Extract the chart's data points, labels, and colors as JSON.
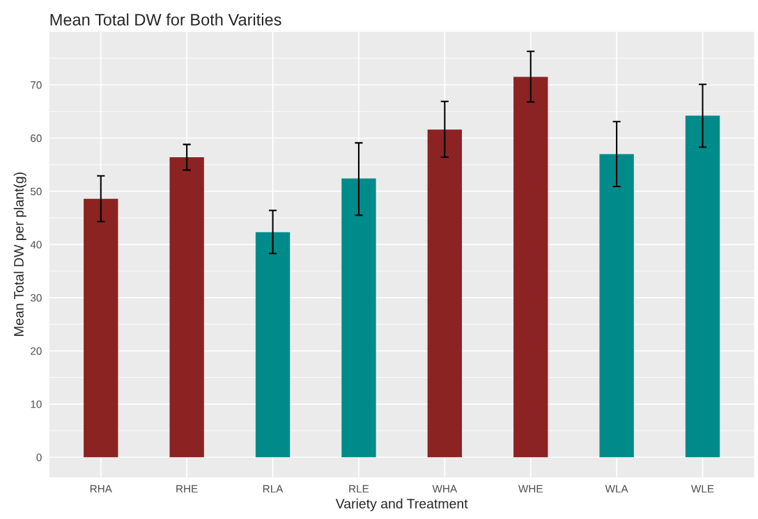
{
  "chart_data": {
    "type": "bar",
    "title": "Mean Total DW for Both Varities",
    "xlabel": "Variety and Treatment",
    "ylabel": "Mean Total DW per plant(g)",
    "categories": [
      "RHA",
      "RHE",
      "RLA",
      "RLE",
      "WHA",
      "WHE",
      "WLA",
      "WLE"
    ],
    "values": [
      48.6,
      56.4,
      42.3,
      52.4,
      61.6,
      71.5,
      57.0,
      64.2
    ],
    "colors": [
      "#8b2323",
      "#8b2323",
      "#008b8b",
      "#008b8b",
      "#8b2323",
      "#8b2323",
      "#008b8b",
      "#008b8b"
    ],
    "errors": [
      [
        44.3,
        52.9
      ],
      [
        54.0,
        58.8
      ],
      [
        38.3,
        46.4
      ],
      [
        45.5,
        59.1
      ],
      [
        56.4,
        66.9
      ],
      [
        66.8,
        76.3
      ],
      [
        50.9,
        63.1
      ],
      [
        58.3,
        70.1
      ]
    ],
    "ylim": [
      -3.8,
      80.1
    ],
    "yticks": [
      0,
      10,
      20,
      30,
      40,
      50,
      60,
      70
    ],
    "grid": true,
    "legend": false
  }
}
